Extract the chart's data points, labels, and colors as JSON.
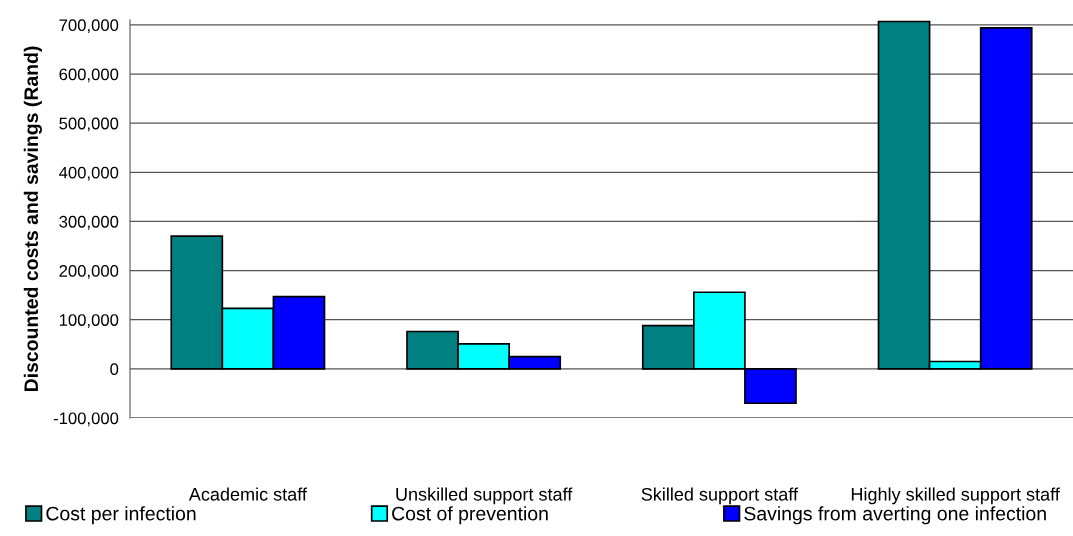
{
  "chart_data": {
    "type": "bar",
    "ylabel": "Discounted costs and savings (Rand)",
    "categories": [
      "Academic staff",
      "Unskilled support staff",
      "Skilled support staff",
      "Highly skilled support staff"
    ],
    "series": [
      {
        "name": "Cost per infection",
        "color": "#008080",
        "values": [
          270000,
          76000,
          88000,
          707000
        ]
      },
      {
        "name": "Cost of prevention",
        "color": "#00ffff",
        "values": [
          123000,
          51000,
          156000,
          15000
        ]
      },
      {
        "name": "Savings from averting one infection",
        "color": "#0000ff",
        "values": [
          147000,
          25000,
          -70000,
          694000
        ]
      }
    ],
    "ylim": [
      -100000,
      710000
    ],
    "yticks": [
      {
        "value": -100000,
        "label": "-100,000"
      },
      {
        "value": 0,
        "label": "0"
      },
      {
        "value": 100000,
        "label": "100,000"
      },
      {
        "value": 200000,
        "label": "200,000"
      },
      {
        "value": 300000,
        "label": "300,000"
      },
      {
        "value": 400000,
        "label": "400,000"
      },
      {
        "value": 500000,
        "label": "500,000"
      },
      {
        "value": 600000,
        "label": "600,000"
      },
      {
        "value": 700000,
        "label": "700,000"
      }
    ],
    "grid": "y",
    "legend": "bottom"
  }
}
